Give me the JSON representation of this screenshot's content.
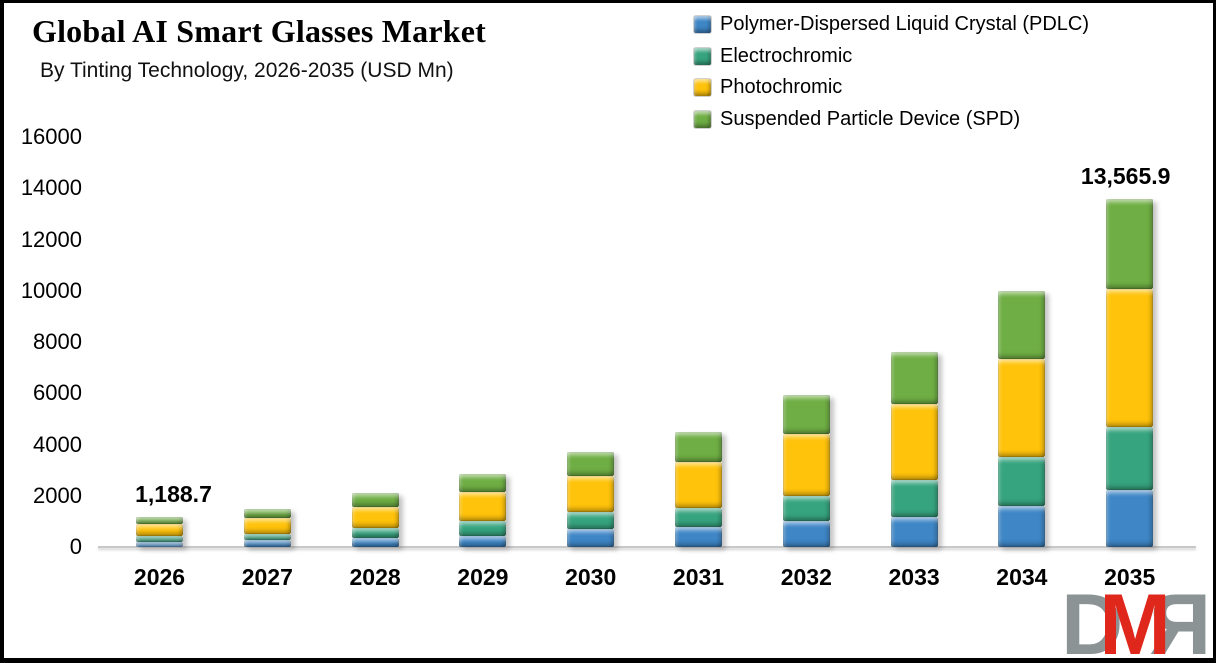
{
  "header": {
    "title": "Global AI Smart Glasses Market",
    "subtitle": "By Tinting Technology, 2026-2035 (USD Mn)"
  },
  "chart_data": {
    "type": "bar",
    "stacked": true,
    "title": "Global AI Smart Glasses Market",
    "subtitle": "By Tinting Technology, 2026-2035 (USD Mn)",
    "unit": "USD Mn",
    "categories": [
      "2026",
      "2027",
      "2028",
      "2029",
      "2030",
      "2031",
      "2032",
      "2033",
      "2034",
      "2035"
    ],
    "series": [
      {
        "name": "Polymer-Dispersed Liquid Crystal (PDLC)",
        "color": "#3e86c6",
        "values": [
          202.1,
          255,
          357,
          441,
          703,
          781,
          1004,
          1160,
          1613,
          2215.0
        ]
      },
      {
        "name": "Electrochromic",
        "color": "#36a47e",
        "values": [
          213.9,
          270,
          378,
          563,
          652,
          742,
          988,
          1470,
          1890,
          2461.0
        ]
      },
      {
        "name": "Photochromic",
        "color": "#ffc30b",
        "values": [
          469.5,
          593,
          830,
          1133,
          1408,
          1785,
          2423,
          2960,
          3843,
          5375.0
        ]
      },
      {
        "name": "Suspended Particle Device (SPD)",
        "color": "#6fae44",
        "values": [
          303.2,
          382,
          535,
          727,
          937,
          1172,
          1535,
          2020,
          2644,
          3514.9
        ]
      }
    ],
    "totals": [
      1188.7,
      1500,
      2100,
      2864,
      3700,
      4480,
      5950,
      7610,
      9990,
      13565.9
    ],
    "annotations": [
      {
        "category": "2026",
        "text": "1,188.7"
      },
      {
        "category": "2035",
        "text": "13,565.9"
      }
    ],
    "y_ticks": [
      0,
      2000,
      4000,
      6000,
      8000,
      10000,
      12000,
      14000,
      16000
    ],
    "ylim": [
      0,
      16000
    ],
    "grid": false,
    "legend_position": "top-right"
  },
  "logo": {
    "letters": [
      {
        "text": "D",
        "color": "#8b9394",
        "mirrored": false
      },
      {
        "text": "M",
        "color": "#e0271c",
        "mirrored": false
      },
      {
        "text": "R",
        "color": "#8b9394",
        "mirrored": true
      }
    ]
  }
}
